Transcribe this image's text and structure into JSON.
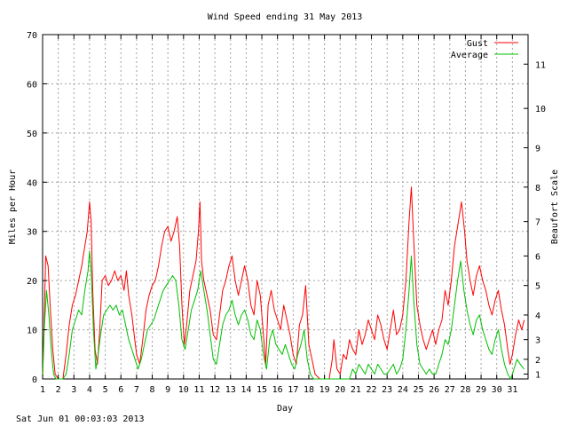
{
  "chart_data": {
    "type": "line",
    "title": "Wind Speed ending 31 May 2013",
    "xlabel": "Day",
    "ylabel": "Miles per Hour",
    "y2label": "Beaufort Scale",
    "timestamp": "Sat Jun 01 00:03:03 2013",
    "xlim": [
      1,
      32
    ],
    "ylim": [
      0,
      70
    ],
    "x_ticks": [
      1,
      2,
      3,
      4,
      5,
      6,
      7,
      8,
      9,
      10,
      11,
      12,
      13,
      14,
      15,
      16,
      17,
      18,
      19,
      20,
      21,
      22,
      23,
      24,
      25,
      26,
      27,
      28,
      29,
      30,
      31
    ],
    "y_ticks": [
      0,
      10,
      20,
      30,
      40,
      50,
      60,
      70
    ],
    "beaufort_ticks": [
      {
        "label": "1",
        "mph": 1
      },
      {
        "label": "2",
        "mph": 4
      },
      {
        "label": "3",
        "mph": 8
      },
      {
        "label": "4",
        "mph": 13
      },
      {
        "label": "5",
        "mph": 19
      },
      {
        "label": "6",
        "mph": 25
      },
      {
        "label": "7",
        "mph": 32
      },
      {
        "label": "8",
        "mph": 39
      },
      {
        "label": "9",
        "mph": 47
      },
      {
        "label": "10",
        "mph": 55
      },
      {
        "label": "11",
        "mph": 64
      }
    ],
    "grid": true,
    "legend_position": "top-right",
    "series": [
      {
        "name": "Gust",
        "color": "#ff0000",
        "points": [
          [
            1.0,
            0
          ],
          [
            1.1,
            12
          ],
          [
            1.2,
            25
          ],
          [
            1.35,
            23
          ],
          [
            1.5,
            14
          ],
          [
            1.65,
            6
          ],
          [
            1.8,
            1
          ],
          [
            2.0,
            0
          ],
          [
            2.3,
            0
          ],
          [
            2.5,
            5
          ],
          [
            2.7,
            11
          ],
          [
            2.9,
            15
          ],
          [
            3.1,
            17
          ],
          [
            3.3,
            20
          ],
          [
            3.5,
            23
          ],
          [
            3.7,
            27
          ],
          [
            3.85,
            30
          ],
          [
            4.0,
            36
          ],
          [
            4.1,
            32
          ],
          [
            4.2,
            18
          ],
          [
            4.35,
            6
          ],
          [
            4.5,
            3
          ],
          [
            4.65,
            10
          ],
          [
            4.8,
            20
          ],
          [
            5.0,
            21
          ],
          [
            5.2,
            19
          ],
          [
            5.4,
            20
          ],
          [
            5.6,
            22
          ],
          [
            5.8,
            20
          ],
          [
            6.0,
            21
          ],
          [
            6.2,
            18
          ],
          [
            6.35,
            22
          ],
          [
            6.5,
            17
          ],
          [
            6.7,
            13
          ],
          [
            6.85,
            9
          ],
          [
            7.0,
            5
          ],
          [
            7.2,
            3
          ],
          [
            7.4,
            8
          ],
          [
            7.6,
            14
          ],
          [
            7.8,
            17
          ],
          [
            8.0,
            19
          ],
          [
            8.2,
            20
          ],
          [
            8.4,
            23
          ],
          [
            8.6,
            27
          ],
          [
            8.8,
            30
          ],
          [
            9.0,
            31
          ],
          [
            9.2,
            28
          ],
          [
            9.4,
            30
          ],
          [
            9.6,
            33
          ],
          [
            9.75,
            27
          ],
          [
            9.9,
            15
          ],
          [
            10.05,
            7
          ],
          [
            10.2,
            11
          ],
          [
            10.4,
            18
          ],
          [
            10.6,
            21
          ],
          [
            10.8,
            24
          ],
          [
            10.95,
            30
          ],
          [
            11.05,
            36
          ],
          [
            11.15,
            24
          ],
          [
            11.3,
            20
          ],
          [
            11.5,
            17
          ],
          [
            11.7,
            14
          ],
          [
            11.9,
            9
          ],
          [
            12.1,
            8
          ],
          [
            12.3,
            13
          ],
          [
            12.5,
            18
          ],
          [
            12.7,
            20
          ],
          [
            12.9,
            23
          ],
          [
            13.1,
            25
          ],
          [
            13.3,
            20
          ],
          [
            13.5,
            17
          ],
          [
            13.7,
            20
          ],
          [
            13.9,
            23
          ],
          [
            14.1,
            20
          ],
          [
            14.3,
            15
          ],
          [
            14.5,
            13
          ],
          [
            14.7,
            20
          ],
          [
            14.9,
            17
          ],
          [
            15.1,
            9
          ],
          [
            15.25,
            3
          ],
          [
            15.4,
            15
          ],
          [
            15.6,
            18
          ],
          [
            15.8,
            14
          ],
          [
            16.0,
            12
          ],
          [
            16.2,
            10
          ],
          [
            16.4,
            15
          ],
          [
            16.6,
            12
          ],
          [
            16.8,
            9
          ],
          [
            17.0,
            5
          ],
          [
            17.2,
            3
          ],
          [
            17.4,
            11
          ],
          [
            17.6,
            13
          ],
          [
            17.8,
            19
          ],
          [
            18.0,
            7
          ],
          [
            18.2,
            4
          ],
          [
            18.4,
            1
          ],
          [
            18.7,
            0
          ],
          [
            19.0,
            0
          ],
          [
            19.3,
            0
          ],
          [
            19.5,
            4
          ],
          [
            19.6,
            8
          ],
          [
            19.8,
            2
          ],
          [
            20.0,
            1
          ],
          [
            20.2,
            5
          ],
          [
            20.4,
            4
          ],
          [
            20.6,
            8
          ],
          [
            20.8,
            6
          ],
          [
            21.0,
            5
          ],
          [
            21.2,
            10
          ],
          [
            21.4,
            7
          ],
          [
            21.6,
            9
          ],
          [
            21.8,
            12
          ],
          [
            22.0,
            10
          ],
          [
            22.2,
            8
          ],
          [
            22.4,
            13
          ],
          [
            22.6,
            11
          ],
          [
            22.8,
            8
          ],
          [
            23.0,
            6
          ],
          [
            23.2,
            10
          ],
          [
            23.4,
            14
          ],
          [
            23.6,
            9
          ],
          [
            23.8,
            10
          ],
          [
            24.0,
            13
          ],
          [
            24.2,
            20
          ],
          [
            24.4,
            32
          ],
          [
            24.55,
            39
          ],
          [
            24.7,
            28
          ],
          [
            24.9,
            15
          ],
          [
            25.1,
            11
          ],
          [
            25.3,
            8
          ],
          [
            25.5,
            6
          ],
          [
            25.7,
            8
          ],
          [
            25.9,
            10
          ],
          [
            26.1,
            7
          ],
          [
            26.3,
            10
          ],
          [
            26.5,
            12
          ],
          [
            26.7,
            18
          ],
          [
            26.9,
            15
          ],
          [
            27.1,
            20
          ],
          [
            27.3,
            27
          ],
          [
            27.55,
            32
          ],
          [
            27.75,
            36
          ],
          [
            27.95,
            30
          ],
          [
            28.1,
            24
          ],
          [
            28.3,
            20
          ],
          [
            28.5,
            17
          ],
          [
            28.7,
            21
          ],
          [
            28.9,
            23
          ],
          [
            29.1,
            20
          ],
          [
            29.3,
            18
          ],
          [
            29.5,
            15
          ],
          [
            29.7,
            13
          ],
          [
            29.9,
            16
          ],
          [
            30.1,
            18
          ],
          [
            30.3,
            14
          ],
          [
            30.5,
            11
          ],
          [
            30.7,
            6
          ],
          [
            30.85,
            3
          ],
          [
            31.0,
            5
          ],
          [
            31.2,
            9
          ],
          [
            31.4,
            12
          ],
          [
            31.6,
            10
          ],
          [
            31.75,
            12
          ]
        ]
      },
      {
        "name": "Average",
        "color": "#00c000",
        "points": [
          [
            1.0,
            0
          ],
          [
            1.1,
            10
          ],
          [
            1.25,
            18
          ],
          [
            1.4,
            13
          ],
          [
            1.55,
            6
          ],
          [
            1.7,
            1
          ],
          [
            1.85,
            0
          ],
          [
            2.3,
            0
          ],
          [
            2.5,
            1
          ],
          [
            2.7,
            5
          ],
          [
            2.9,
            10
          ],
          [
            3.1,
            12
          ],
          [
            3.3,
            14
          ],
          [
            3.5,
            13
          ],
          [
            3.7,
            18
          ],
          [
            3.9,
            22
          ],
          [
            4.0,
            26
          ],
          [
            4.1,
            22
          ],
          [
            4.25,
            10
          ],
          [
            4.4,
            2
          ],
          [
            4.55,
            5
          ],
          [
            4.7,
            9
          ],
          [
            4.9,
            13
          ],
          [
            5.1,
            14
          ],
          [
            5.3,
            15
          ],
          [
            5.5,
            14
          ],
          [
            5.7,
            15
          ],
          [
            5.9,
            13
          ],
          [
            6.1,
            14
          ],
          [
            6.3,
            11
          ],
          [
            6.5,
            8
          ],
          [
            6.7,
            6
          ],
          [
            6.9,
            4
          ],
          [
            7.1,
            2
          ],
          [
            7.3,
            4
          ],
          [
            7.5,
            7
          ],
          [
            7.7,
            10
          ],
          [
            7.9,
            11
          ],
          [
            8.1,
            12
          ],
          [
            8.3,
            14
          ],
          [
            8.5,
            16
          ],
          [
            8.7,
            18
          ],
          [
            8.9,
            19
          ],
          [
            9.1,
            20
          ],
          [
            9.3,
            21
          ],
          [
            9.5,
            20
          ],
          [
            9.7,
            15
          ],
          [
            9.9,
            8
          ],
          [
            10.1,
            6
          ],
          [
            10.3,
            10
          ],
          [
            10.5,
            14
          ],
          [
            10.7,
            16
          ],
          [
            10.9,
            18
          ],
          [
            11.1,
            22
          ],
          [
            11.3,
            18
          ],
          [
            11.5,
            14
          ],
          [
            11.7,
            9
          ],
          [
            11.9,
            4
          ],
          [
            12.1,
            3
          ],
          [
            12.3,
            7
          ],
          [
            12.5,
            11
          ],
          [
            12.7,
            13
          ],
          [
            12.9,
            14
          ],
          [
            13.1,
            16
          ],
          [
            13.3,
            13
          ],
          [
            13.5,
            11
          ],
          [
            13.7,
            13
          ],
          [
            13.9,
            14
          ],
          [
            14.1,
            12
          ],
          [
            14.3,
            9
          ],
          [
            14.5,
            8
          ],
          [
            14.7,
            12
          ],
          [
            14.9,
            10
          ],
          [
            15.1,
            5
          ],
          [
            15.3,
            2
          ],
          [
            15.5,
            8
          ],
          [
            15.7,
            10
          ],
          [
            15.9,
            7
          ],
          [
            16.1,
            6
          ],
          [
            16.3,
            5
          ],
          [
            16.5,
            7
          ],
          [
            16.7,
            5
          ],
          [
            16.9,
            3
          ],
          [
            17.1,
            2
          ],
          [
            17.3,
            5
          ],
          [
            17.5,
            7
          ],
          [
            17.7,
            10
          ],
          [
            17.9,
            4
          ],
          [
            18.1,
            1
          ],
          [
            18.3,
            0
          ],
          [
            20.6,
            0
          ],
          [
            20.8,
            2
          ],
          [
            21.0,
            1
          ],
          [
            21.2,
            3
          ],
          [
            21.4,
            2
          ],
          [
            21.6,
            1
          ],
          [
            21.8,
            3
          ],
          [
            22.0,
            2
          ],
          [
            22.2,
            1
          ],
          [
            22.4,
            3
          ],
          [
            22.6,
            2
          ],
          [
            22.8,
            1
          ],
          [
            23.0,
            1
          ],
          [
            23.2,
            2
          ],
          [
            23.4,
            3
          ],
          [
            23.6,
            1
          ],
          [
            23.8,
            2
          ],
          [
            24.0,
            4
          ],
          [
            24.2,
            10
          ],
          [
            24.4,
            18
          ],
          [
            24.55,
            25
          ],
          [
            24.7,
            16
          ],
          [
            24.9,
            7
          ],
          [
            25.1,
            3
          ],
          [
            25.3,
            2
          ],
          [
            25.5,
            1
          ],
          [
            25.7,
            2
          ],
          [
            25.9,
            1
          ],
          [
            26.1,
            1
          ],
          [
            26.3,
            3
          ],
          [
            26.5,
            5
          ],
          [
            26.7,
            8
          ],
          [
            26.9,
            7
          ],
          [
            27.1,
            10
          ],
          [
            27.3,
            15
          ],
          [
            27.5,
            20
          ],
          [
            27.7,
            24
          ],
          [
            27.9,
            18
          ],
          [
            28.1,
            14
          ],
          [
            28.3,
            11
          ],
          [
            28.5,
            9
          ],
          [
            28.7,
            12
          ],
          [
            28.9,
            13
          ],
          [
            29.1,
            10
          ],
          [
            29.3,
            8
          ],
          [
            29.5,
            6
          ],
          [
            29.7,
            5
          ],
          [
            29.9,
            8
          ],
          [
            30.1,
            10
          ],
          [
            30.3,
            6
          ],
          [
            30.5,
            3
          ],
          [
            30.7,
            1
          ],
          [
            30.9,
            0
          ],
          [
            31.1,
            2
          ],
          [
            31.3,
            4
          ],
          [
            31.5,
            3
          ],
          [
            31.75,
            2
          ]
        ]
      }
    ]
  }
}
